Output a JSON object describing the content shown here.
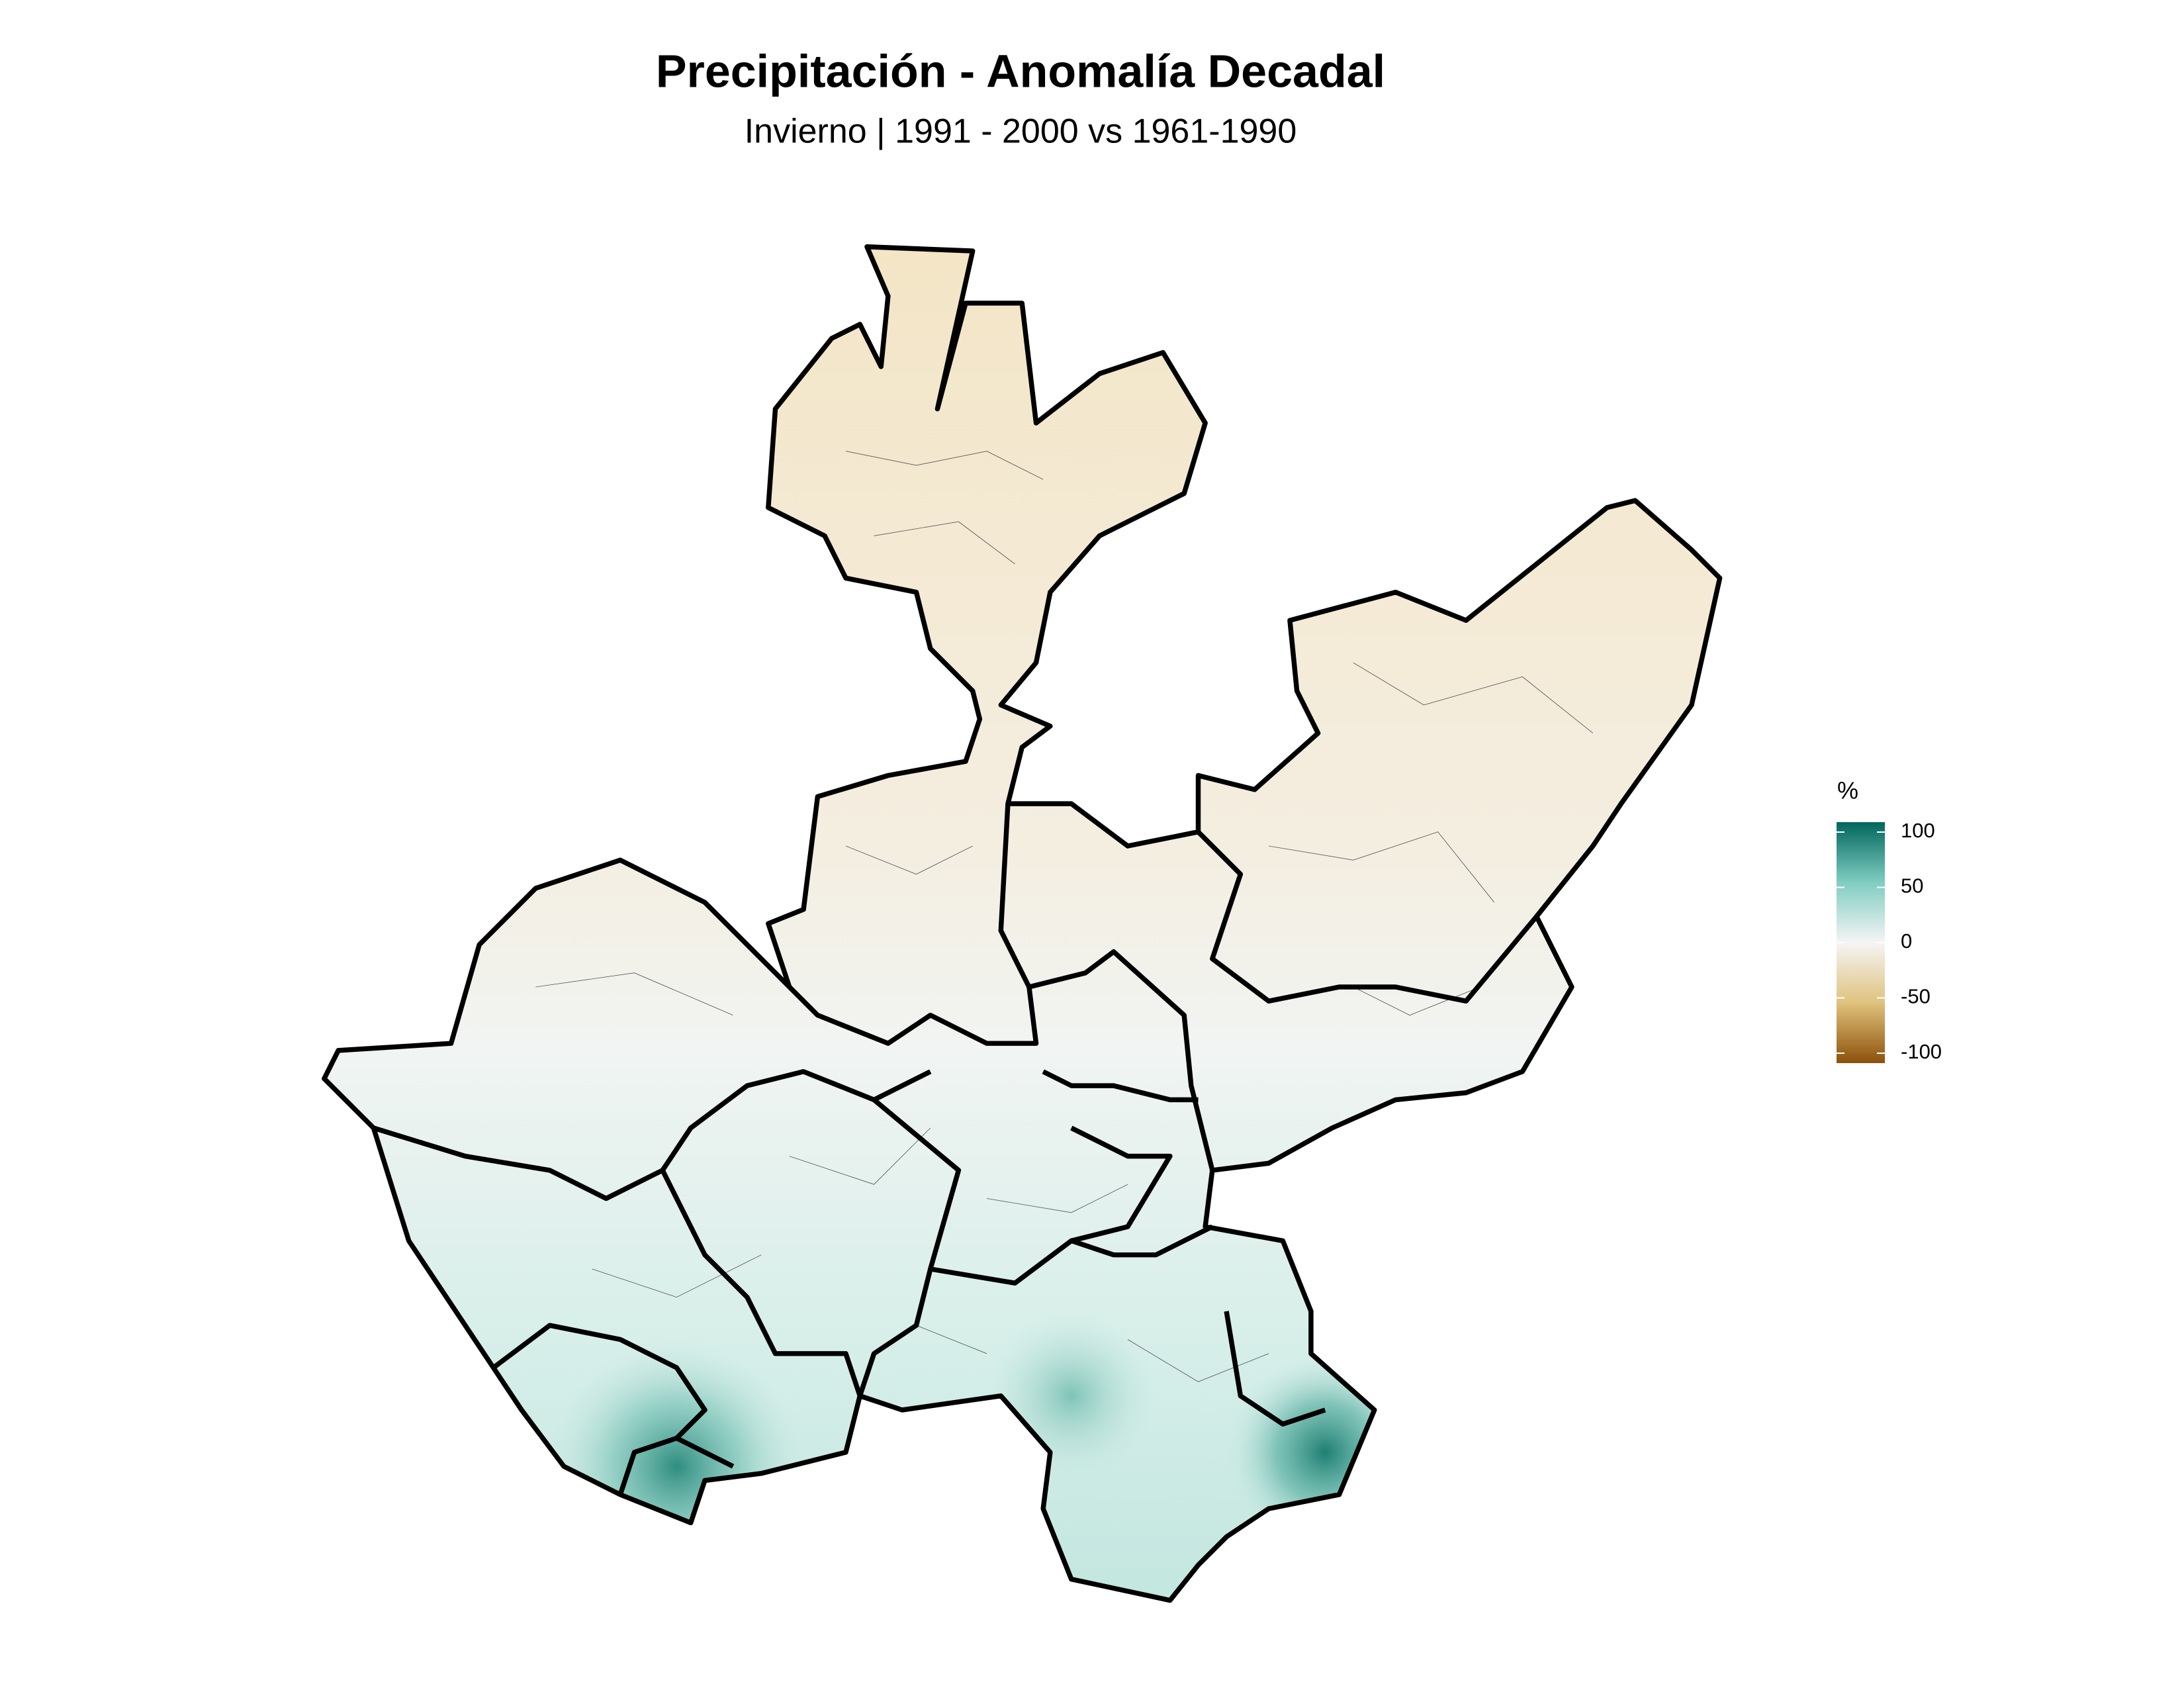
{
  "title": "Precipitación - Anomalía Decadal",
  "subtitle": "Invierno | 1991 - 2000 vs 1961-1990",
  "legend": {
    "title": "%",
    "range": [
      -100,
      100
    ],
    "ticks": [
      100,
      50,
      0,
      -50,
      -100
    ],
    "colors": [
      "#8c510a",
      "#dfc27d",
      "#f5f5f5",
      "#80cdc1",
      "#01665e"
    ]
  }
}
